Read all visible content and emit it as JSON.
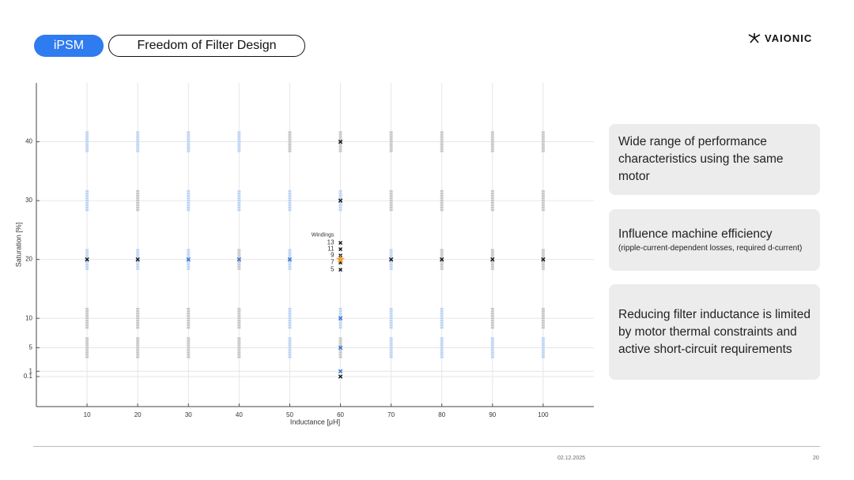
{
  "header": {
    "tag": "iPSM",
    "title": "Freedom of Filter Design",
    "logo": "VAIONIC"
  },
  "chart_data": {
    "type": "scatter",
    "xlabel": "Inductance [μH]",
    "ylabel": "Saturation [%]",
    "xlim": [
      0,
      110
    ],
    "ylim": [
      -5,
      50
    ],
    "xticks": [
      10,
      20,
      30,
      40,
      50,
      60,
      70,
      80,
      90,
      100
    ],
    "yticks": [
      0.1,
      1,
      5,
      10,
      20,
      30,
      40
    ],
    "grid": true,
    "stacks": {
      "x": [
        10,
        10,
        10,
        10,
        10,
        20,
        20,
        20,
        20,
        20,
        30,
        30,
        30,
        30,
        30,
        40,
        40,
        40,
        40,
        40,
        50,
        50,
        50,
        50,
        50,
        60,
        60,
        60,
        60,
        70,
        70,
        70,
        70,
        70,
        80,
        80,
        80,
        80,
        80,
        90,
        90,
        90,
        90,
        90,
        100,
        100,
        100,
        100,
        100
      ],
      "values": [
        40,
        30,
        20,
        10,
        5,
        40,
        30,
        20,
        10,
        5,
        40,
        30,
        20,
        10,
        5,
        40,
        30,
        20,
        10,
        5,
        40,
        30,
        20,
        10,
        5,
        40,
        30,
        10,
        5,
        40,
        30,
        20,
        10,
        5,
        40,
        30,
        20,
        10,
        5,
        40,
        30,
        20,
        10,
        5,
        40,
        30,
        20,
        10,
        5
      ],
      "colors": [
        "#bcd4f4",
        "#bcd4f4",
        "#bcd4f4",
        "#c6c6c6",
        "#c6c6c6",
        "#bcd4f4",
        "#c6c6c6",
        "#bcd4f4",
        "#c6c6c6",
        "#c6c6c6",
        "#bcd4f4",
        "#bcd4f4",
        "#bcd4f4",
        "#c6c6c6",
        "#c6c6c6",
        "#bcd4f4",
        "#bcd4f4",
        "#c6c6c6",
        "#c6c6c6",
        "#c6c6c6",
        "#c6c6c6",
        "#bcd4f4",
        "#bcd4f4",
        "#bcd4f4",
        "#bcd4f4",
        "#c6c6c6",
        "#bcd4f4",
        "#bcd4f4",
        "#c6c6c6",
        "#c6c6c6",
        "#c6c6c6",
        "#bcd4f4",
        "#bcd4f4",
        "#bcd4f4",
        "#c6c6c6",
        "#c6c6c6",
        "#c6c6c6",
        "#bcd4f4",
        "#bcd4f4",
        "#c6c6c6",
        "#c6c6c6",
        "#c6c6c6",
        "#c6c6c6",
        "#bcd4f4",
        "#c6c6c6",
        "#c6c6c6",
        "#c6c6c6",
        "#c6c6c6",
        "#bcd4f4"
      ]
    },
    "series": [
      {
        "color": "#111111",
        "marker": "x",
        "x": [
          10,
          20,
          70,
          80,
          90,
          100,
          60,
          60,
          60
        ],
        "values": [
          20,
          20,
          20,
          20,
          20,
          20,
          40,
          30,
          0.1
        ]
      },
      {
        "color": "#2f6fd6",
        "marker": "x",
        "x": [
          30,
          40,
          50,
          60,
          60,
          60
        ],
        "values": [
          20,
          20,
          20,
          10,
          5,
          1
        ]
      },
      {
        "color": "#f0a030",
        "marker": "star",
        "x": [
          60
        ],
        "values": [
          20
        ]
      }
    ],
    "annotation": {
      "title": "Windings",
      "x": 60,
      "y": 20,
      "labels": [
        13,
        11,
        9,
        7,
        5
      ]
    }
  },
  "boxes": [
    {
      "text": "Wide range of performance characteristics using the same motor"
    },
    {
      "text": "Influence machine efficiency",
      "note": "(ripple-current-dependent losses, required d-current)"
    },
    {
      "text": "Reducing filter inductance is limited by motor thermal constraints and active short-circuit requirements"
    }
  ],
  "footer": {
    "date": "02.12.2025",
    "page": "20"
  }
}
